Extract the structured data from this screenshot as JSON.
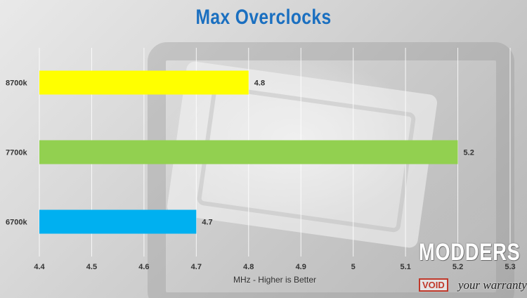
{
  "chart_data": {
    "type": "bar",
    "orientation": "horizontal",
    "title": "Max Overclocks",
    "xlabel": "MHz - Higher is Better",
    "ylabel": "",
    "categories": [
      "8700k",
      "7700k",
      "6700k"
    ],
    "values": [
      4.8,
      5.2,
      4.7
    ],
    "value_labels": [
      "4.8",
      "5.2",
      "4.7"
    ],
    "bar_colors": [
      "#ffff00",
      "#92d050",
      "#00b0f0"
    ],
    "xlim": [
      4.4,
      5.3
    ],
    "xticks": [
      4.4,
      4.5,
      4.6,
      4.7,
      4.8,
      4.9,
      5.0,
      5.1,
      5.2,
      5.3
    ],
    "xtick_labels": [
      "4.4",
      "4.5",
      "4.6",
      "4.7",
      "4.8",
      "4.9",
      "5",
      "5.1",
      "5.2",
      "5.3"
    ],
    "grid": true,
    "legend": "none",
    "title_color": "#1a6fc0"
  },
  "watermark": {
    "brand": "MODDERS",
    "void_label": "VOID",
    "tagline": "your warranty"
  }
}
